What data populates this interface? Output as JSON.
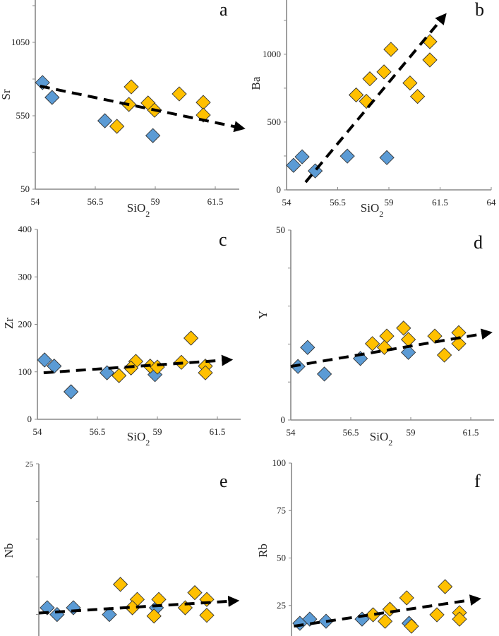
{
  "colors": {
    "group_blue": "#5b9bd5",
    "group_yellow": "#ffc000",
    "trend": "#000000",
    "axis": "#888888"
  },
  "chart_data": [
    {
      "panel": "a",
      "type": "scatter",
      "xlabel": "SiO2",
      "ylabel": "Sr",
      "xlim": [
        54,
        62.6
      ],
      "ylim": [
        50,
        1300
      ],
      "xticks": [
        54,
        56.5,
        59,
        61.5
      ],
      "xtick_labels": [
        "54",
        "56.5",
        "59",
        "61.5"
      ],
      "yticks": [
        50,
        300,
        550,
        800,
        1050,
        1300
      ],
      "ytick_labels": [
        "50",
        "",
        "550",
        "",
        "1050",
        ""
      ],
      "series": [
        {
          "name": "blue",
          "x": [
            54.3,
            54.7,
            56.9,
            58.9
          ],
          "y": [
            776,
            675,
            516,
            415
          ]
        },
        {
          "name": "yellow",
          "x": [
            58.0,
            57.9,
            58.7,
            58.97,
            60.0,
            61.0,
            61.0,
            57.4
          ],
          "y": [
            747,
            627,
            637,
            588,
            699,
            641,
            555,
            478
          ]
        }
      ],
      "trend": {
        "from": [
          54.2,
          752
        ],
        "to": [
          62.55,
          468
        ]
      }
    },
    {
      "panel": "b",
      "type": "scatter",
      "xlabel": "SiO2",
      "ylabel": "Ba",
      "xlim": [
        54,
        64
      ],
      "ylim": [
        0,
        1400
      ],
      "xticks": [
        54,
        56.5,
        59,
        61.5,
        64
      ],
      "xtick_labels": [
        "54",
        "56.5",
        "59",
        "61.5",
        "64"
      ],
      "yticks": [
        0,
        250,
        500,
        750,
        1000,
        1250
      ],
      "ytick_labels": [
        "0",
        "",
        "500",
        "",
        "1000",
        ""
      ],
      "series": [
        {
          "name": "blue",
          "x": [
            54.34,
            54.76,
            55.4,
            56.97,
            58.9
          ],
          "y": [
            181,
            244,
            140,
            249,
            238
          ]
        },
        {
          "name": "yellow",
          "x": [
            59.1,
            58.76,
            58.07,
            57.4,
            57.9,
            60.03,
            60.4,
            61.0,
            61.0
          ],
          "y": [
            1036,
            870,
            819,
            700,
            653,
            788,
            689,
            1093,
            958
          ]
        }
      ],
      "trend": {
        "from": [
          54.93,
          57
        ],
        "to": [
          61.66,
          1275
        ]
      }
    },
    {
      "panel": "c",
      "type": "scatter",
      "xlabel": "SiO2",
      "ylabel": "Zr",
      "xlim": [
        54,
        62.6
      ],
      "ylim": [
        0,
        400
      ],
      "xticks": [
        54,
        56.5,
        59,
        61.5
      ],
      "xtick_labels": [
        "54",
        "56.5",
        "59",
        "61.5"
      ],
      "yticks": [
        0,
        100,
        200,
        300,
        400
      ],
      "ytick_labels": [
        "0",
        "100",
        "200",
        "300",
        "400"
      ],
      "series": [
        {
          "name": "blue",
          "x": [
            54.3,
            54.7,
            55.4,
            56.9,
            58.9
          ],
          "y": [
            125,
            112,
            58,
            98,
            94
          ]
        },
        {
          "name": "yellow",
          "x": [
            58.1,
            57.9,
            57.4,
            58.7,
            59.0,
            60.0,
            60.4,
            61.0,
            61.0
          ],
          "y": [
            122,
            108,
            92,
            112,
            110,
            120,
            171,
            112,
            98
          ]
        }
      ],
      "trend": {
        "from": [
          54.26,
          98
        ],
        "to": [
          61.94,
          125
        ]
      }
    },
    {
      "panel": "d",
      "type": "scatter",
      "xlabel": "SiO2",
      "ylabel": "Y",
      "xlim": [
        54,
        62.6
      ],
      "ylim": [
        0,
        50
      ],
      "xticks": [
        54,
        56.5,
        59,
        61.5
      ],
      "xtick_labels": [
        "54",
        "56.5",
        "59",
        "61.5"
      ],
      "yticks": [
        0,
        10,
        20,
        30,
        40,
        50
      ],
      "ytick_labels": [
        "0",
        "",
        "",
        "",
        "",
        "50"
      ],
      "series": [
        {
          "name": "blue",
          "x": [
            54.3,
            54.7,
            55.4,
            56.9,
            58.9
          ],
          "y": [
            14.1,
            19.1,
            12.1,
            16.2,
            17.8
          ]
        },
        {
          "name": "yellow",
          "x": [
            57.4,
            58.0,
            57.9,
            58.7,
            58.9,
            60.0,
            60.4,
            61.0,
            61.0
          ],
          "y": [
            20.1,
            22.1,
            19.1,
            24.2,
            21.2,
            22.1,
            17.1,
            23.0,
            20.1
          ]
        }
      ],
      "trend": {
        "from": [
          54.0,
          14.1
        ],
        "to": [
          62.2,
          22.9
        ]
      }
    },
    {
      "panel": "e",
      "type": "scatter",
      "xlabel": "SiO2",
      "ylabel": "Nb",
      "xlim": [
        54,
        62.6
      ],
      "ylim": [
        0,
        25
      ],
      "xticks": [],
      "xtick_labels": [],
      "yticks": [
        5,
        10,
        15,
        20,
        25
      ],
      "ytick_labels": [
        "",
        "",
        "",
        "",
        "25"
      ],
      "series": [
        {
          "name": "blue",
          "x": [
            54.35,
            54.76,
            55.44,
            56.94,
            58.9
          ],
          "y": [
            5.9,
            5.0,
            5.9,
            5.0,
            5.9
          ]
        },
        {
          "name": "yellow",
          "x": [
            57.4,
            58.1,
            57.9,
            59.0,
            58.8,
            60.5,
            60.1,
            61.0,
            61.0
          ],
          "y": [
            9.0,
            7.0,
            5.9,
            7.0,
            4.8,
            7.9,
            5.9,
            7.0,
            4.9
          ]
        }
      ],
      "trend": {
        "from": [
          54.0,
          5.2
        ],
        "to": [
          62.15,
          6.8
        ]
      }
    },
    {
      "panel": "f",
      "type": "scatter",
      "xlabel": "SiO2",
      "ylabel": "Rb",
      "xlim": [
        54,
        62.6
      ],
      "ylim": [
        0,
        100
      ],
      "xticks": [],
      "xtick_labels": [],
      "yticks": [
        25,
        50,
        75,
        100
      ],
      "ytick_labels": [
        "25",
        "50",
        "75",
        "100"
      ],
      "series": [
        {
          "name": "blue",
          "x": [
            54.35,
            54.76,
            55.44,
            56.94,
            58.9
          ],
          "y": [
            15.6,
            17.8,
            16.7,
            17.8,
            15.6
          ]
        },
        {
          "name": "yellow",
          "x": [
            57.4,
            58.1,
            57.9,
            58.8,
            60.4,
            60.06,
            61.0,
            61.0,
            59.0
          ],
          "y": [
            20.1,
            23.0,
            16.7,
            29.0,
            34.9,
            20.1,
            21.2,
            17.8,
            14.1
          ]
        }
      ],
      "trend": {
        "from": [
          54.1,
          14.1
        ],
        "to": [
          61.7,
          28.3
        ]
      }
    }
  ]
}
